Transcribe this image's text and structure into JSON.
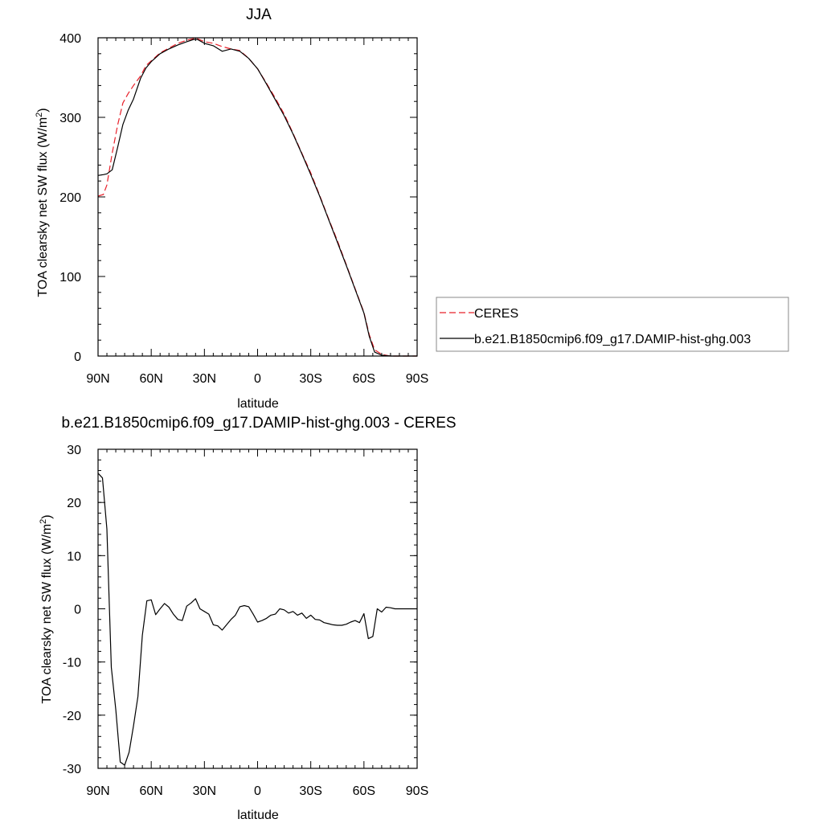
{
  "figure_title": "JJA",
  "chart_data": [
    {
      "type": "line",
      "title": "JJA",
      "xlabel": "latitude",
      "ylabel": "TOA clearsky net SW flux (W/m",
      "ylabel_sup": "2",
      "ylabel_close": ")",
      "xlim": [
        90,
        -90
      ],
      "ylim": [
        0,
        400
      ],
      "x_ticks": [
        {
          "v": 90,
          "label": "90N"
        },
        {
          "v": 60,
          "label": "60N"
        },
        {
          "v": 30,
          "label": "30N"
        },
        {
          "v": 0,
          "label": "0"
        },
        {
          "v": -30,
          "label": "30S"
        },
        {
          "v": -60,
          "label": "60S"
        },
        {
          "v": -90,
          "label": "90S"
        }
      ],
      "y_ticks": [
        0,
        100,
        200,
        300,
        400
      ],
      "legend_position": "right",
      "series": [
        {
          "name": "CERES",
          "color": "#e8202a",
          "dash": "dashed",
          "x": [
            90,
            87,
            85,
            82,
            79,
            76,
            73,
            70,
            66,
            63,
            60,
            55,
            50,
            45,
            40,
            36,
            34,
            30,
            25,
            20,
            15,
            10,
            5,
            0,
            -5,
            -10,
            -15,
            -20,
            -25,
            -30,
            -35,
            -40,
            -45,
            -50,
            -55,
            -60,
            -63,
            -66,
            -70,
            -75,
            -80,
            -85,
            -90
          ],
          "values": [
            201,
            203,
            215,
            255,
            290,
            318,
            330,
            340,
            352,
            365,
            371,
            381,
            387,
            393,
            397,
            399,
            399,
            395,
            393,
            389,
            386,
            384,
            374,
            361,
            343,
            324,
            304,
            280,
            255,
            230,
            202,
            173,
            145,
            115,
            85,
            55,
            27,
            8,
            2,
            0,
            0,
            0,
            0
          ]
        },
        {
          "name": "b.e21.B1850cmip6.f09_g17.DAMIP-hist-ghg.003",
          "color": "#000000",
          "dash": "solid",
          "x": [
            90,
            87,
            85,
            82,
            79,
            76,
            73,
            70,
            66,
            63,
            60,
            55,
            50,
            45,
            40,
            36,
            34,
            30,
            25,
            20,
            15,
            10,
            5,
            0,
            -5,
            -10,
            -15,
            -20,
            -25,
            -30,
            -35,
            -40,
            -45,
            -50,
            -55,
            -60,
            -63,
            -66,
            -70,
            -75,
            -80,
            -85,
            -90
          ],
          "values": [
            227,
            228,
            229,
            234,
            262,
            291,
            309,
            323,
            349,
            362,
            370,
            380,
            386,
            391,
            395,
            398,
            398,
            393,
            390,
            383,
            386,
            383,
            374,
            361,
            342,
            322,
            302,
            279,
            254,
            228,
            201,
            172,
            143,
            114,
            84,
            54,
            25,
            5,
            1,
            0,
            0,
            0,
            0
          ]
        }
      ]
    },
    {
      "type": "line",
      "title": "b.e21.B1850cmip6.f09_g17.DAMIP-hist-ghg.003 - CERES",
      "xlabel": "latitude",
      "ylabel": "TOA clearsky net SW flux (W/m",
      "ylabel_sup": "2",
      "ylabel_close": ")",
      "xlim": [
        90,
        -90
      ],
      "ylim": [
        -30,
        30
      ],
      "x_ticks": [
        {
          "v": 90,
          "label": "90N"
        },
        {
          "v": 60,
          "label": "60N"
        },
        {
          "v": 30,
          "label": "30N"
        },
        {
          "v": 0,
          "label": "0"
        },
        {
          "v": -30,
          "label": "30S"
        },
        {
          "v": -60,
          "label": "60S"
        },
        {
          "v": -90,
          "label": "90S"
        }
      ],
      "y_ticks": [
        -30,
        -20,
        -10,
        0,
        10,
        20,
        30
      ],
      "series": [
        {
          "color": "#000000",
          "dash": "solid",
          "x": [
            90,
            87.5,
            85,
            82.5,
            80,
            77.5,
            75,
            72.5,
            70,
            67.5,
            65,
            62.5,
            60,
            57.5,
            55,
            52.5,
            50,
            47.5,
            45,
            42.5,
            40,
            37.5,
            35,
            32.5,
            30,
            27.5,
            25,
            22.5,
            20,
            17.5,
            15,
            12.5,
            10,
            7.5,
            5,
            2.5,
            0,
            -2.5,
            -5,
            -7.5,
            -10,
            -12.5,
            -15,
            -17.5,
            -20,
            -22.5,
            -25,
            -27.5,
            -30,
            -32.5,
            -35,
            -37.5,
            -40,
            -42.5,
            -45,
            -47.5,
            -50,
            -52.5,
            -55,
            -57.5,
            -60,
            -62.5,
            -65,
            -67.5,
            -70,
            -72.5,
            -75,
            -77.5,
            -80,
            -82.5,
            -85,
            -87.5,
            -90
          ],
          "values": [
            25.5,
            24.6,
            15,
            -11,
            -19,
            -28.8,
            -29.4,
            -27,
            -22,
            -16.5,
            -5,
            1.5,
            1.7,
            -1.1,
            0,
            1,
            0.3,
            -1,
            -2,
            -2.2,
            0.5,
            1.1,
            1.9,
            0,
            -0.5,
            -1,
            -3,
            -3.2,
            -4,
            -3,
            -2,
            -1.2,
            0.4,
            0.6,
            0.4,
            -1,
            -2.5,
            -2.2,
            -1.8,
            -1.2,
            -1,
            0,
            -0.2,
            -0.8,
            -0.5,
            -1.2,
            -0.8,
            -1.8,
            -1.2,
            -2,
            -2.1,
            -2.6,
            -2.8,
            -3,
            -3.1,
            -3.1,
            -2.9,
            -2.5,
            -2.2,
            -2.6,
            -0.9,
            -5.6,
            -5.2,
            0,
            -0.6,
            0.3,
            0.2,
            0,
            0,
            0,
            0,
            0,
            0
          ]
        }
      ]
    }
  ]
}
